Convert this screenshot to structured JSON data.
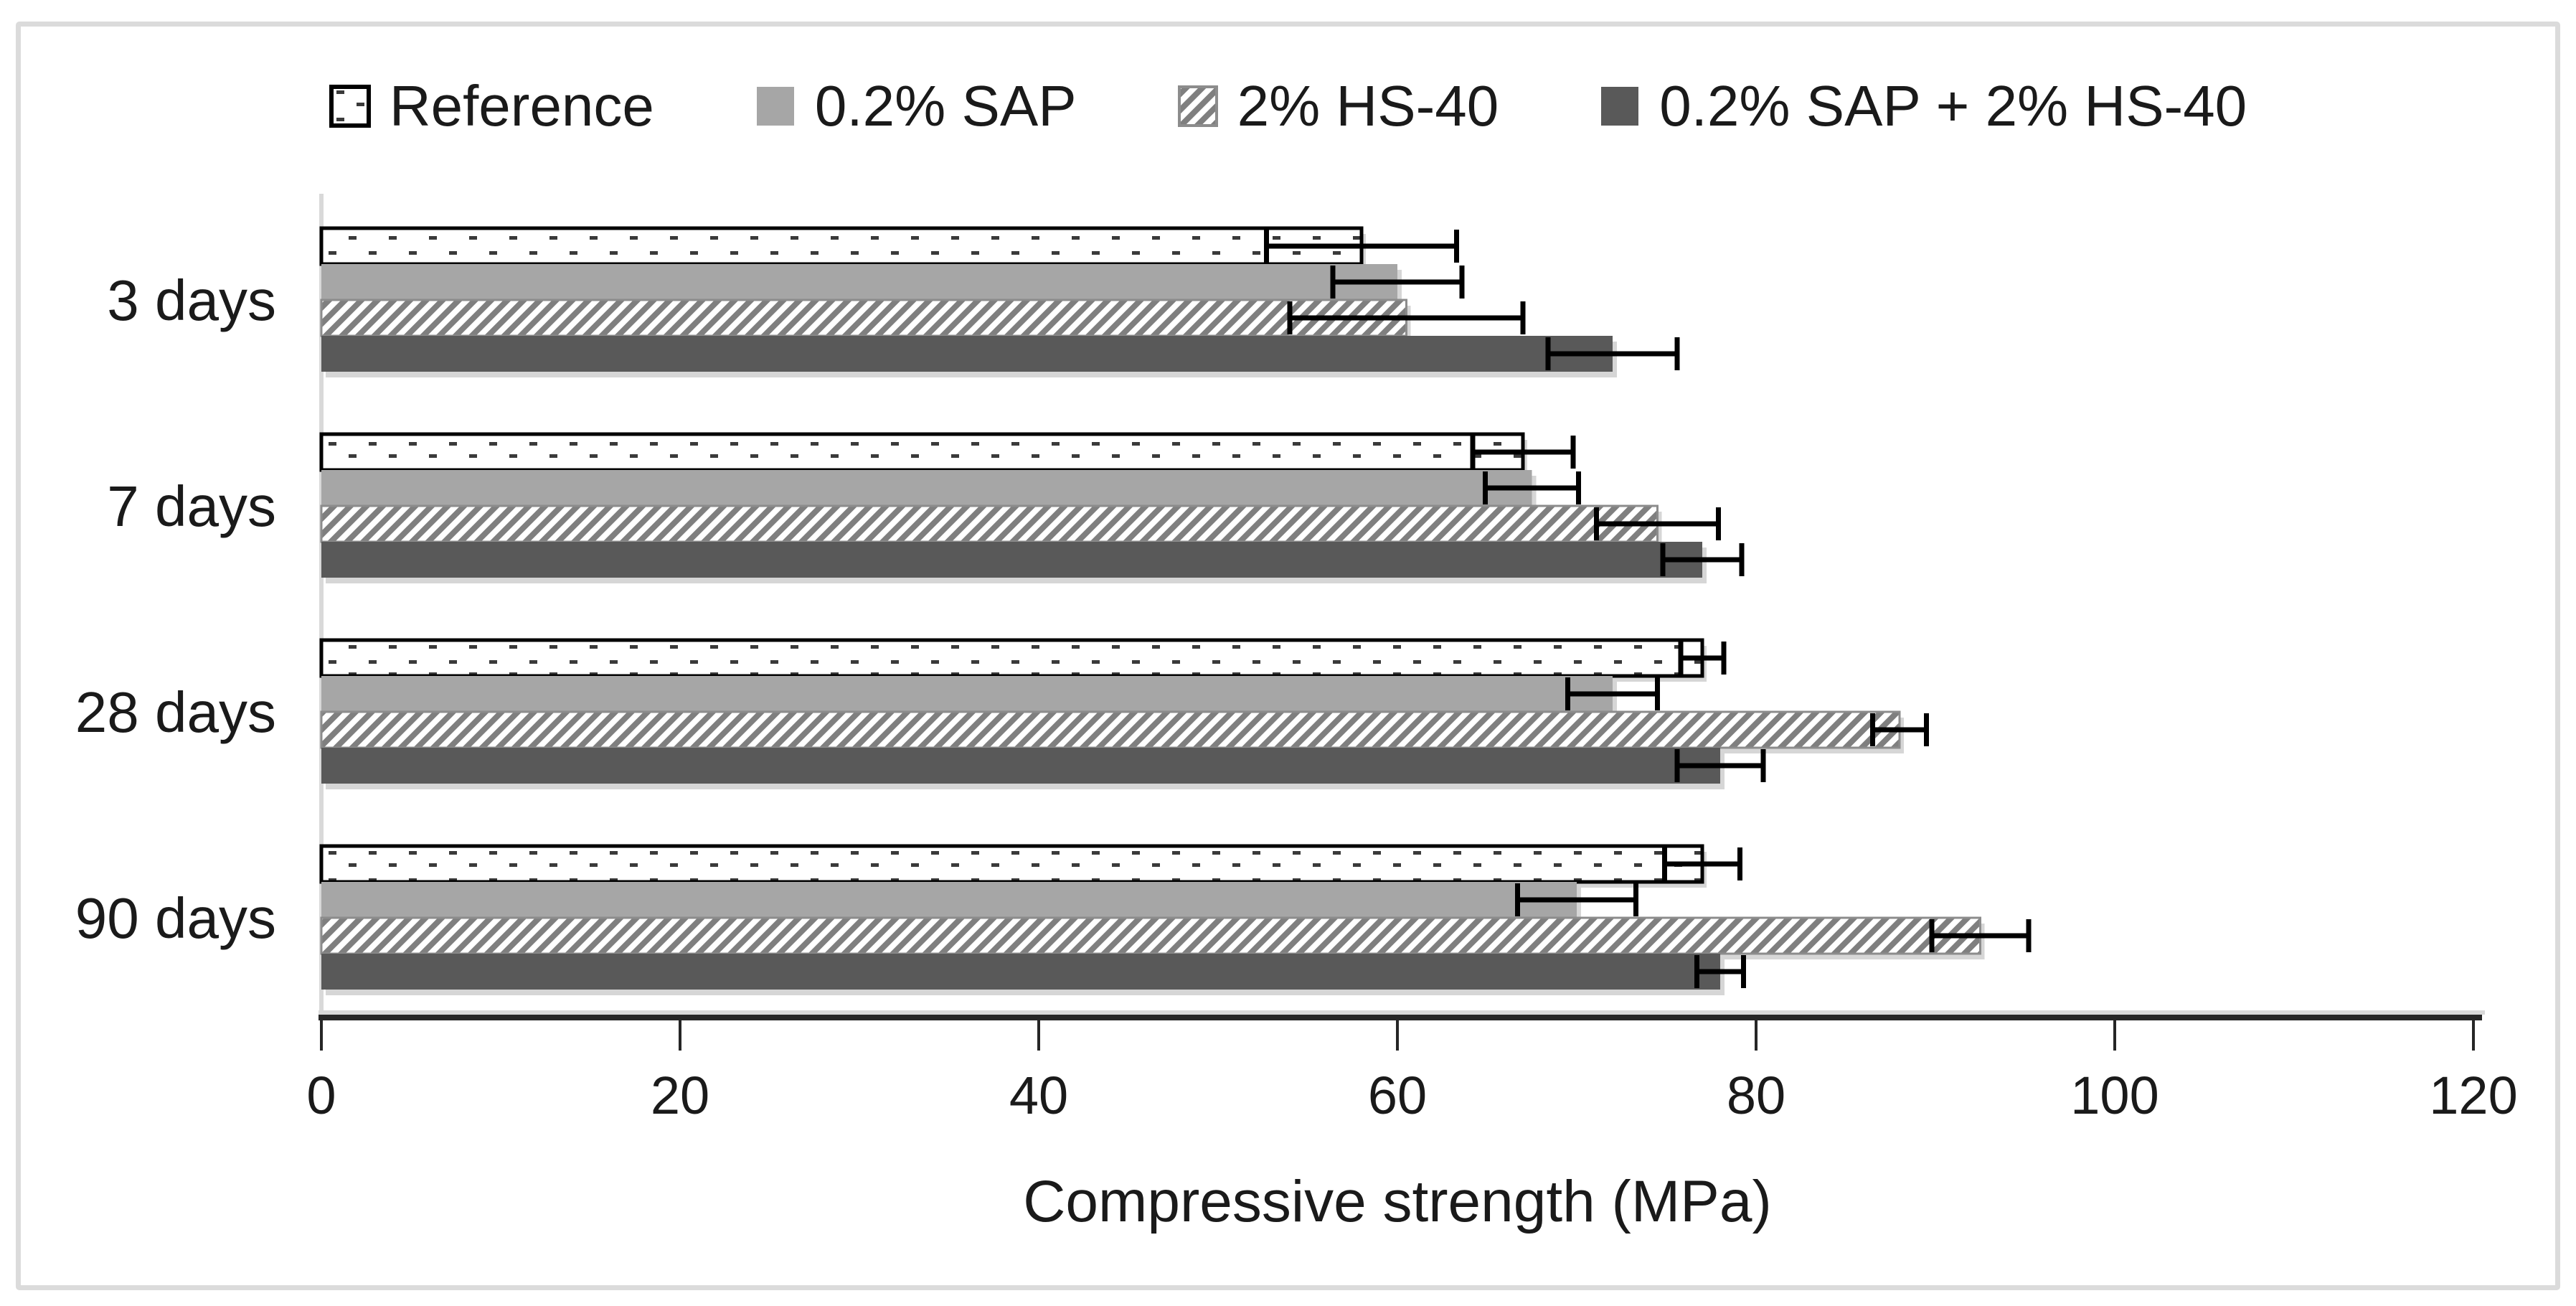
{
  "chart_data": {
    "type": "bar",
    "orientation": "horizontal",
    "title": "",
    "xlabel": "Compressive strength (MPa)",
    "ylabel": "",
    "categories": [
      "3 days",
      "7 days",
      "28 days",
      "90 days"
    ],
    "series": [
      {
        "name": "Reference",
        "style": "dots",
        "values": [
          58,
          67,
          77,
          77
        ],
        "errors": [
          5.3,
          2.8,
          1.2,
          2.1
        ]
      },
      {
        "name": "0.2% SAP",
        "style": "solid-light",
        "values": [
          60,
          67.5,
          72,
          70
        ],
        "errors": [
          3.6,
          2.6,
          2.5,
          3.3
        ]
      },
      {
        "name": "2% HS-40",
        "style": "hatch",
        "values": [
          60.5,
          74.5,
          88,
          92.5
        ],
        "errors": [
          6.5,
          3.4,
          1.5,
          2.7
        ]
      },
      {
        "name": "0.2% SAP + 2% HS-40",
        "style": "solid-dark",
        "values": [
          72,
          77,
          78,
          78
        ],
        "errors": [
          3.6,
          2.2,
          2.4,
          1.3
        ]
      }
    ],
    "x_ticks": [
      0,
      20,
      40,
      60,
      80,
      100,
      120
    ],
    "xlim": [
      0,
      120
    ],
    "grid": false,
    "error_bars": true,
    "legend_position": "top"
  },
  "colors": {
    "solid_light": "#a6a6a6",
    "solid_dark": "#595959",
    "hatch_bg": "#7f7f7f",
    "hatch_fg": "#ffffff",
    "reference_fill": "#ffffff",
    "reference_border": "#000000",
    "dot": "#3a3a3a",
    "error_bar": "#000000",
    "axis_line": "#262626",
    "axis_shadow": "#d9d9d9",
    "baseline": "#d9d9d9",
    "text": "#1a1a1a",
    "frame_border": "#dbdbdb"
  }
}
